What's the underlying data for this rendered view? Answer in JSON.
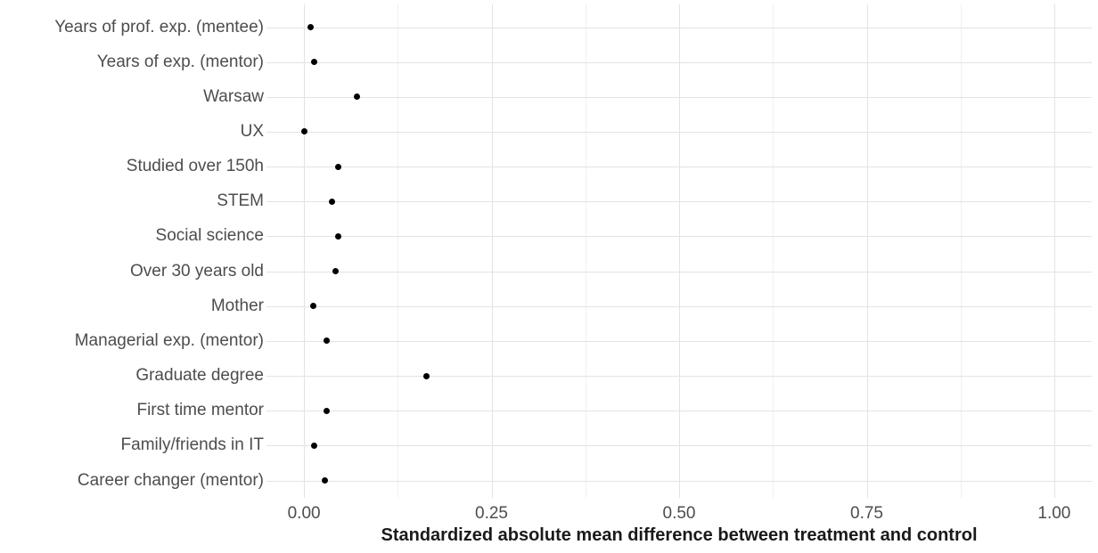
{
  "chart_data": {
    "type": "scatter",
    "variant": "cleveland-dot-plot",
    "orientation": "horizontal",
    "title": "",
    "xlabel": "Standardized absolute mean difference between treatment and control",
    "ylabel": "",
    "categories": [
      "Years of prof. exp. (mentee)",
      "Years of exp. (mentor)",
      "Warsaw",
      "UX",
      "Studied over 150h",
      "STEM",
      "Social science",
      "Over 30 years old",
      "Mother",
      "Managerial exp. (mentor)",
      "Graduate degree",
      "First time mentor",
      "Family/friends in IT",
      "Career changer (mentor)"
    ],
    "values": [
      0.009,
      0.013,
      0.071,
      0.001,
      0.046,
      0.037,
      0.045,
      0.042,
      0.012,
      0.03,
      0.163,
      0.03,
      0.013,
      0.028
    ],
    "xlim": [
      -0.05,
      1.05
    ],
    "x_major_ticks": [
      0,
      0.25,
      0.5,
      0.75,
      1
    ],
    "x_tick_labels": [
      "0.00",
      "0.25",
      "0.50",
      "0.75",
      "1.00"
    ],
    "x_minor_ticks": [
      0.125,
      0.375,
      0.625,
      0.875
    ],
    "grid": "vertical major+minor, horizontal per category",
    "legend": "none",
    "colors": {
      "background": "#ffffff",
      "axis_text": "#4d4d4d",
      "axis_title": "#1a1a1a",
      "grid_major": "#e3e3e3",
      "grid_minor": "#f0f0f0",
      "point": "#000000"
    }
  }
}
